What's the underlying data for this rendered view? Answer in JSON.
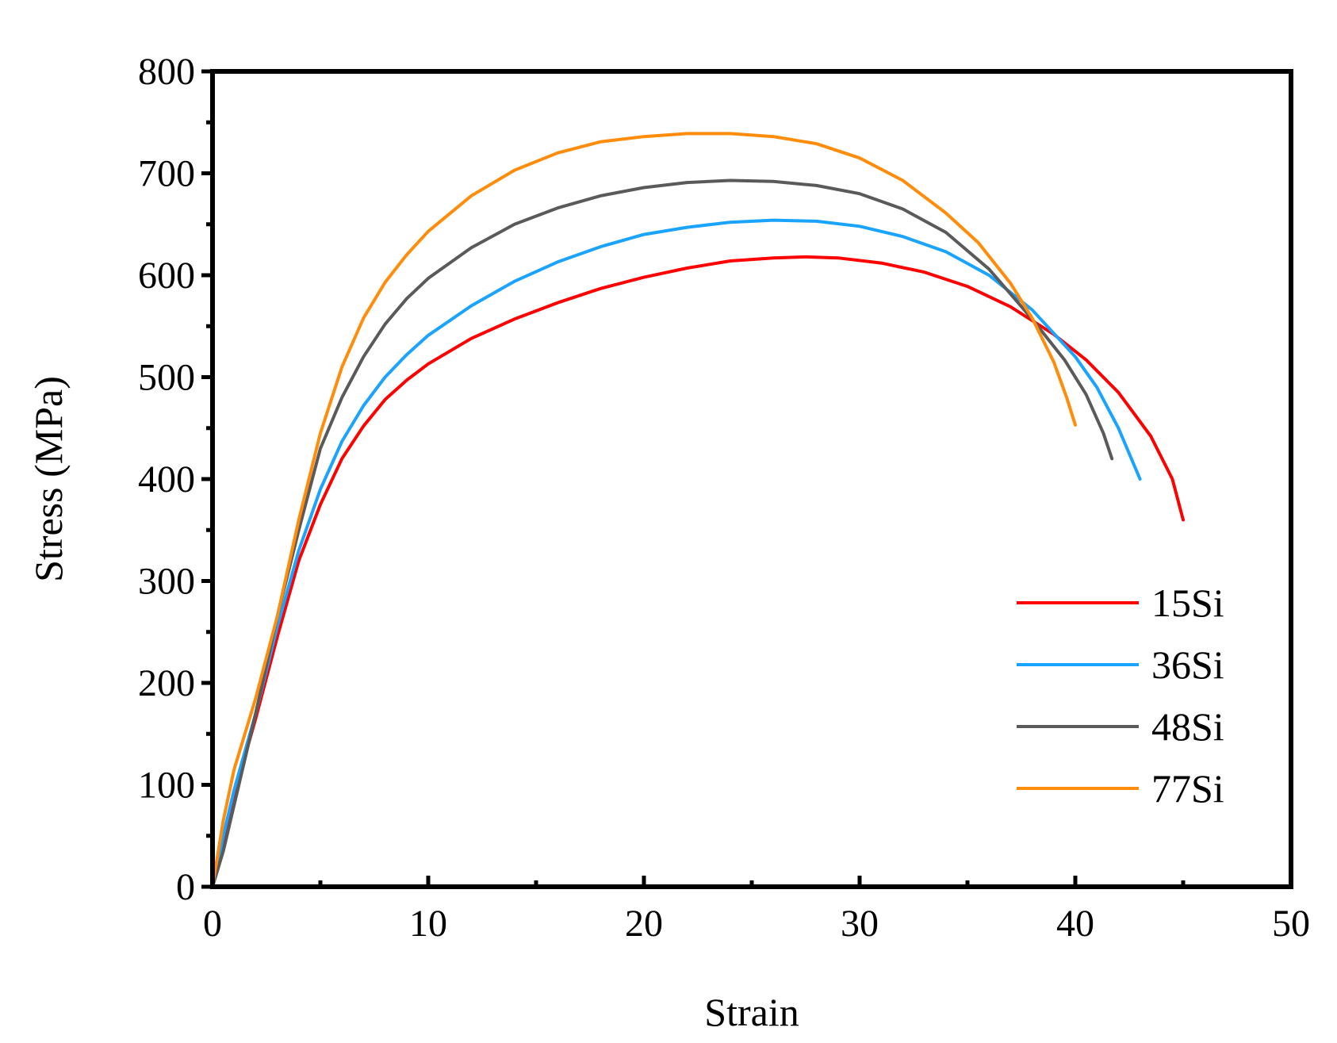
{
  "chart_data": {
    "type": "line",
    "title": "",
    "xlabel": "Strain",
    "ylabel": "Stress (MPa)",
    "xlim": [
      0,
      50
    ],
    "ylim": [
      0,
      800
    ],
    "xticks": [
      0,
      10,
      20,
      30,
      40,
      50
    ],
    "xtick_labels": [
      "0",
      "10",
      "20",
      "30",
      "40",
      "50"
    ],
    "yticks": [
      0,
      100,
      200,
      300,
      400,
      500,
      600,
      700,
      800
    ],
    "ytick_labels": [
      "0",
      "100",
      "200",
      "300",
      "400",
      "500",
      "600",
      "700",
      "800"
    ],
    "grid": false,
    "legend_position": "bottom-right",
    "series": [
      {
        "name": "15Si",
        "color": "#ff0000",
        "x": [
          0,
          0.5,
          1,
          2,
          3,
          4,
          5,
          6,
          7,
          8,
          9,
          10,
          12,
          14,
          16,
          18,
          20,
          22,
          24,
          26,
          27.5,
          29,
          31,
          33,
          35,
          37,
          39,
          40.5,
          42,
          43.5,
          44.5,
          45
        ],
        "y": [
          0,
          45,
          90,
          165,
          245,
          320,
          375,
          420,
          452,
          478,
          497,
          513,
          538,
          557,
          573,
          587,
          598,
          607,
          614,
          617,
          618,
          617,
          612,
          603,
          589,
          569,
          542,
          517,
          485,
          442,
          400,
          360
        ]
      },
      {
        "name": "36Si",
        "color": "#1aa3ff",
        "x": [
          0,
          0.5,
          1,
          2,
          3,
          4,
          5,
          6,
          7,
          8,
          9,
          10,
          12,
          14,
          16,
          18,
          20,
          22,
          24,
          26,
          28,
          30,
          32,
          34,
          36,
          38,
          40,
          41,
          42,
          43
        ],
        "y": [
          0,
          50,
          95,
          170,
          255,
          330,
          390,
          437,
          472,
          500,
          522,
          541,
          570,
          594,
          613,
          628,
          640,
          647,
          652,
          654,
          653,
          648,
          638,
          623,
          600,
          566,
          520,
          490,
          450,
          400
        ]
      },
      {
        "name": "48Si",
        "color": "#5a5a5a",
        "x": [
          0,
          0.5,
          1,
          2,
          3,
          4,
          5,
          6,
          7,
          8,
          9,
          10,
          12,
          14,
          16,
          18,
          20,
          22,
          24,
          26,
          28,
          30,
          32,
          34,
          36,
          38,
          39.5,
          40.5,
          41.3,
          41.7
        ],
        "y": [
          0,
          35,
          80,
          170,
          265,
          350,
          430,
          480,
          520,
          552,
          577,
          597,
          627,
          650,
          666,
          678,
          686,
          691,
          693,
          692,
          688,
          680,
          665,
          642,
          606,
          557,
          517,
          483,
          445,
          420
        ]
      },
      {
        "name": "77Si",
        "color": "#ff8c0a",
        "x": [
          0,
          0.5,
          1,
          2,
          3,
          4,
          5,
          6,
          7,
          8,
          9,
          10,
          12,
          14,
          16,
          18,
          20,
          22,
          24,
          26,
          28,
          30,
          32,
          34,
          35.5,
          37,
          38,
          39,
          39.6,
          40
        ],
        "y": [
          0,
          65,
          115,
          185,
          265,
          360,
          445,
          510,
          558,
          593,
          620,
          643,
          678,
          703,
          720,
          731,
          736,
          739,
          739,
          736,
          729,
          715,
          693,
          661,
          632,
          592,
          558,
          515,
          480,
          453
        ]
      }
    ]
  }
}
